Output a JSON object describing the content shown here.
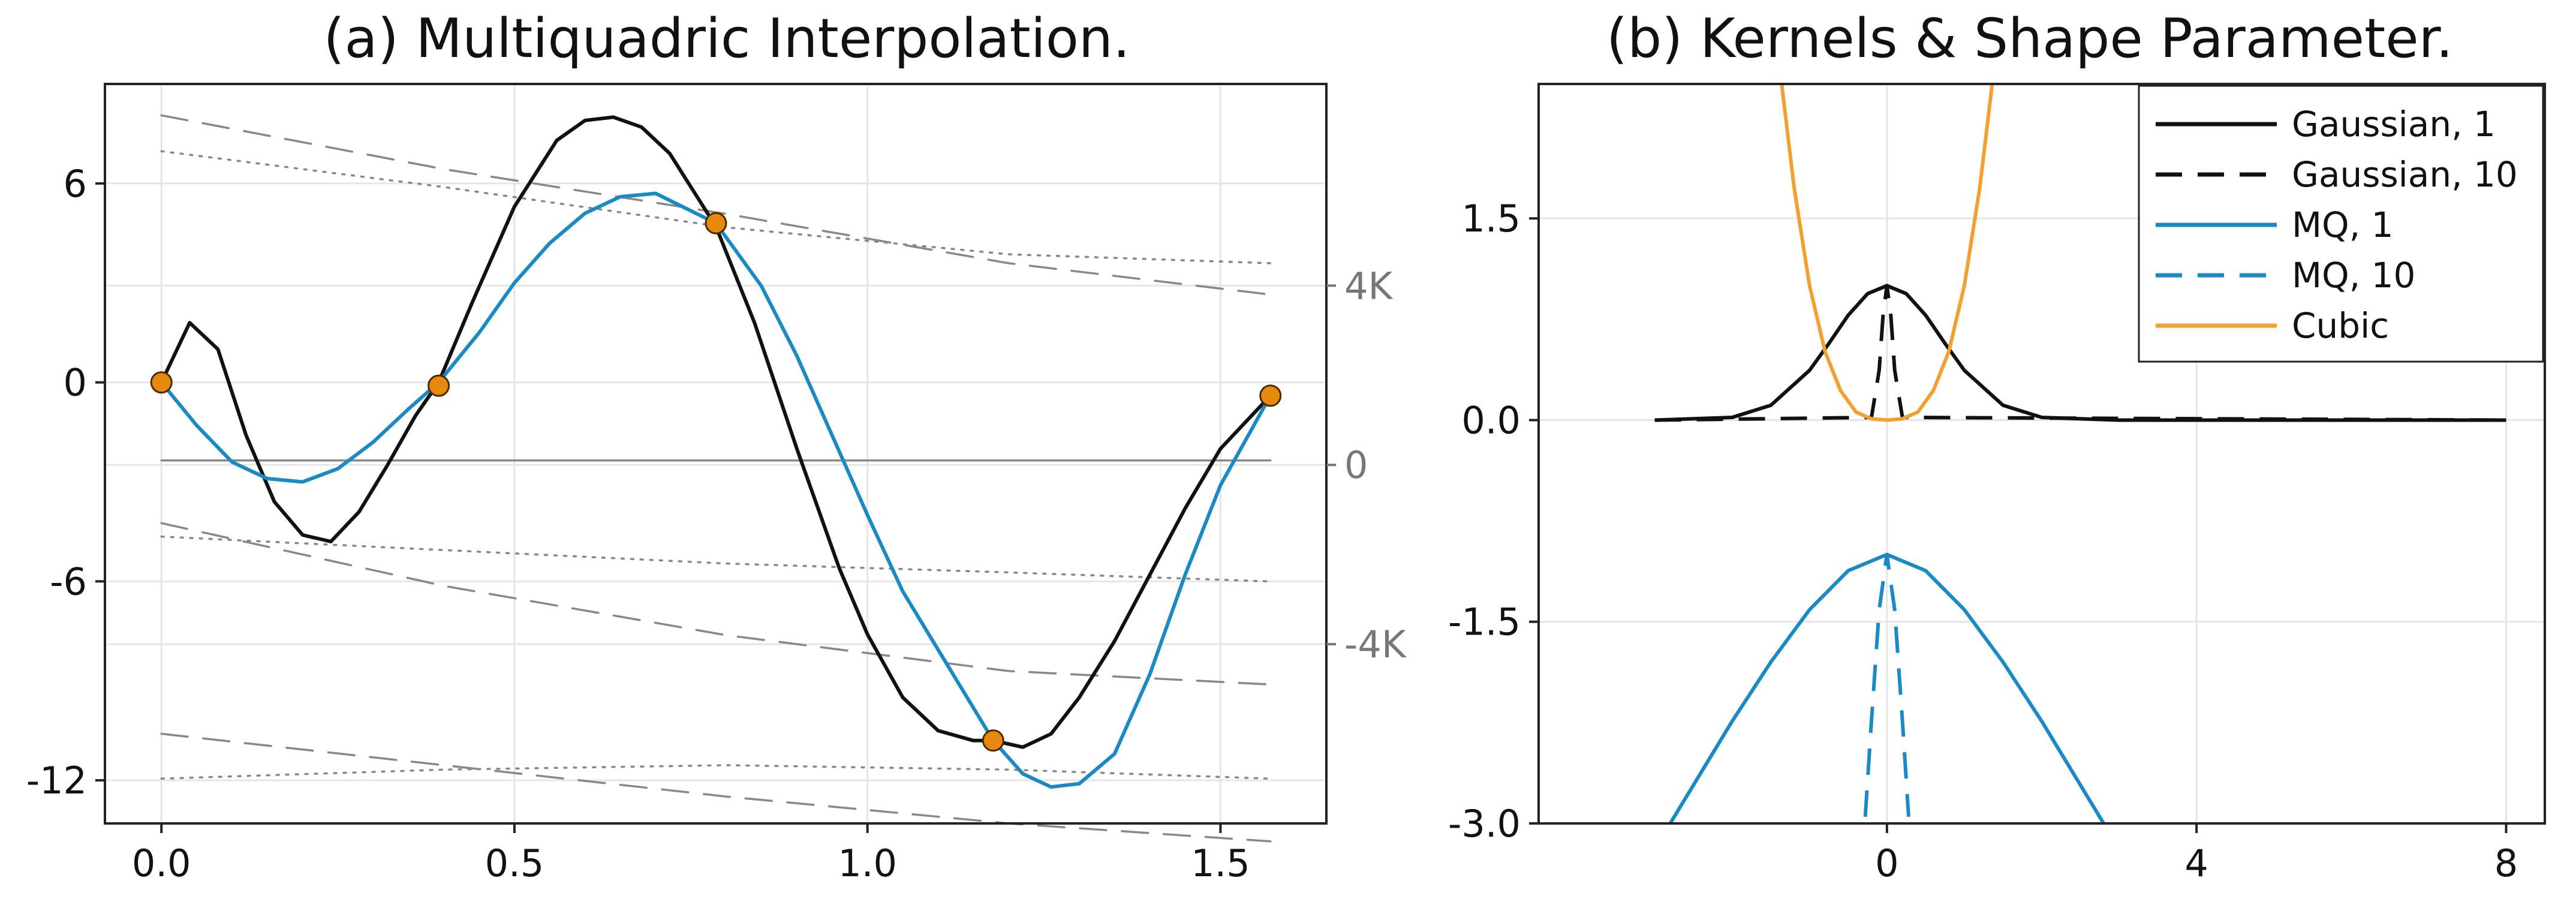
{
  "colors": {
    "black": "#111111",
    "blue": "#1a8ac4",
    "orange": "#f2a030",
    "marker": "#e8890f",
    "gray": "#888888",
    "grid": "#e6e6e6"
  },
  "chart_data": [
    {
      "type": "line",
      "title": "(a) Multiquadric Interpolation.",
      "xlim": [
        -0.08,
        1.65
      ],
      "ylim": [
        -13.3,
        9.0
      ],
      "x_ticks": [
        0.0,
        0.5,
        1.0,
        1.5
      ],
      "x_tick_labels": [
        "0.0",
        "0.5",
        "1.0",
        "1.5"
      ],
      "y_ticks": [
        -12,
        -6,
        0,
        6
      ],
      "y_tick_labels": [
        "-12",
        "-6",
        "0",
        "6"
      ],
      "right_axis": {
        "ylim": [
          -8000,
          8500
        ],
        "ticks": [
          -4000,
          0,
          4000
        ],
        "tick_labels": [
          "-4K",
          "0",
          "4K"
        ]
      },
      "grid": true,
      "legend": "none",
      "series": [
        {
          "name": "interpolant (black)",
          "color": "black",
          "axis": "left",
          "x": [
            0.0,
            0.04,
            0.08,
            0.12,
            0.16,
            0.2,
            0.24,
            0.28,
            0.32,
            0.36,
            0.3927,
            0.44,
            0.5,
            0.56,
            0.6,
            0.64,
            0.68,
            0.72,
            0.7854,
            0.84,
            0.9,
            0.96,
            1.0,
            1.05,
            1.1,
            1.15,
            1.1781,
            1.22,
            1.26,
            1.3,
            1.35,
            1.4,
            1.45,
            1.5,
            1.5708
          ],
          "y": [
            0.0,
            1.8,
            1.0,
            -1.6,
            -3.6,
            -4.6,
            -4.8,
            -3.9,
            -2.5,
            -1.0,
            0.0,
            2.4,
            5.3,
            7.3,
            7.9,
            8.0,
            7.7,
            6.9,
            4.7,
            1.8,
            -2.0,
            -5.6,
            -7.6,
            -9.5,
            -10.5,
            -10.8,
            -10.8,
            -11.0,
            -10.6,
            -9.5,
            -7.8,
            -5.8,
            -3.8,
            -2.0,
            -0.4
          ]
        },
        {
          "name": "interpolant (blue)",
          "color": "blue",
          "axis": "left",
          "x": [
            0.0,
            0.05,
            0.1,
            0.15,
            0.2,
            0.25,
            0.3,
            0.35,
            0.3927,
            0.45,
            0.5,
            0.55,
            0.6,
            0.65,
            0.7,
            0.7854,
            0.85,
            0.9,
            0.95,
            1.0,
            1.05,
            1.1781,
            1.22,
            1.26,
            1.3,
            1.35,
            1.4,
            1.45,
            1.5,
            1.5708
          ],
          "y": [
            0.0,
            -1.3,
            -2.4,
            -2.9,
            -3.0,
            -2.6,
            -1.8,
            -0.8,
            0.0,
            1.5,
            3.0,
            4.2,
            5.1,
            5.6,
            5.7,
            4.8,
            2.9,
            0.8,
            -1.6,
            -4.0,
            -6.3,
            -10.8,
            -11.8,
            -12.2,
            -12.1,
            -11.2,
            -8.8,
            -5.8,
            -3.1,
            -0.4
          ]
        },
        {
          "name": "gray solid",
          "color": "gray",
          "style": "solid",
          "axis": "right",
          "x": [
            0.0,
            1.5708
          ],
          "y": [
            100,
            100
          ]
        },
        {
          "name": "gray dash 1",
          "color": "gray",
          "style": "dash",
          "axis": "right",
          "x": [
            0.0,
            0.4,
            0.8,
            1.2,
            1.5708
          ],
          "y": [
            7800,
            6600,
            5600,
            4500,
            3800
          ]
        },
        {
          "name": "gray dash 2",
          "color": "gray",
          "style": "dash",
          "axis": "right",
          "x": [
            0.0,
            0.4,
            0.8,
            1.2,
            1.5708
          ],
          "y": [
            -1300,
            -2700,
            -3800,
            -4600,
            -4900
          ]
        },
        {
          "name": "gray dash 3",
          "color": "gray",
          "style": "dash",
          "axis": "right",
          "x": [
            0.0,
            0.4,
            0.8,
            1.2,
            1.5708
          ],
          "y": [
            -6000,
            -6700,
            -7400,
            -8000,
            -8400
          ]
        },
        {
          "name": "gray dashdot 1",
          "color": "gray",
          "style": "dashdot",
          "axis": "right",
          "x": [
            0.0,
            0.4,
            0.8,
            1.2,
            1.5708
          ],
          "y": [
            7000,
            6200,
            5300,
            4700,
            4500
          ]
        },
        {
          "name": "gray dashdot 2",
          "color": "gray",
          "style": "dashdot",
          "axis": "right",
          "x": [
            0.0,
            0.4,
            0.8,
            1.2,
            1.5708
          ],
          "y": [
            -1600,
            -1900,
            -2200,
            -2400,
            -2600
          ]
        },
        {
          "name": "gray dashdot 3",
          "color": "gray",
          "style": "dashdot",
          "axis": "right",
          "x": [
            0.0,
            0.4,
            0.8,
            1.2,
            1.5708
          ],
          "y": [
            -7000,
            -6800,
            -6700,
            -6800,
            -7000
          ]
        }
      ],
      "points": {
        "name": "data points",
        "x": [
          0.0,
          0.3927,
          0.7854,
          1.1781,
          1.5708
        ],
        "y": [
          0.0,
          -0.1,
          4.8,
          -10.8,
          -0.4
        ]
      }
    },
    {
      "type": "line",
      "title": "(b) Kernels & Shape Parameter.",
      "xlim": [
        -4.5,
        8.5
      ],
      "ylim": [
        -3.0,
        2.5
      ],
      "x_ticks": [
        0,
        4,
        8
      ],
      "x_tick_labels": [
        "0",
        "4",
        "8"
      ],
      "y_ticks": [
        -3.0,
        -1.5,
        0.0,
        1.5
      ],
      "y_tick_labels": [
        "-3.0",
        "-1.5",
        "0.0",
        "1.5"
      ],
      "grid": true,
      "legend": "top-right",
      "series": [
        {
          "name": "Gaussian, 1",
          "color": "black",
          "style": "solid",
          "x": [
            -3.0,
            -2.0,
            -1.5,
            -1.0,
            -0.75,
            -0.5,
            -0.25,
            0.0,
            0.25,
            0.5,
            0.75,
            1.0,
            1.5,
            2.0,
            3.0,
            5.0,
            8.0
          ],
          "y": [
            0.0,
            0.02,
            0.11,
            0.37,
            0.57,
            0.78,
            0.94,
            1.0,
            0.94,
            0.78,
            0.57,
            0.37,
            0.11,
            0.02,
            0.0,
            0.0,
            0.0
          ]
        },
        {
          "name": "Gaussian, 10",
          "color": "black",
          "style": "dash",
          "x": [
            -3.0,
            -0.2,
            -0.1,
            -0.05,
            0.0,
            0.05,
            0.1,
            0.2,
            8.0
          ],
          "y": [
            0.0,
            0.02,
            0.37,
            0.78,
            1.0,
            0.78,
            0.37,
            0.02,
            0.0
          ]
        },
        {
          "name": "MQ, 1",
          "color": "blue",
          "style": "solid",
          "x": [
            -2.8,
            -2.0,
            -1.5,
            -1.0,
            -0.5,
            0.0,
            0.5,
            1.0,
            1.5,
            2.0,
            2.8
          ],
          "y": [
            -3.0,
            -2.24,
            -1.8,
            -1.41,
            -1.12,
            -1.0,
            -1.12,
            -1.41,
            -1.8,
            -2.24,
            -3.0
          ]
        },
        {
          "name": "MQ, 10",
          "color": "blue",
          "style": "dash",
          "x": [
            -0.28,
            -0.2,
            -0.1,
            0.0,
            0.1,
            0.2,
            0.28
          ],
          "y": [
            -2.95,
            -2.24,
            -1.41,
            -1.0,
            -1.41,
            -2.24,
            -2.95
          ]
        },
        {
          "name": "Cubic",
          "color": "orange",
          "style": "solid",
          "x": [
            -1.36,
            -1.2,
            -1.0,
            -0.8,
            -0.6,
            -0.4,
            -0.2,
            0.0,
            0.2,
            0.4,
            0.6,
            0.8,
            1.0,
            1.2,
            1.36
          ],
          "y": [
            2.5,
            1.73,
            1.0,
            0.51,
            0.22,
            0.06,
            0.01,
            0.0,
            0.01,
            0.06,
            0.22,
            0.51,
            1.0,
            1.73,
            2.5
          ]
        }
      ]
    }
  ]
}
